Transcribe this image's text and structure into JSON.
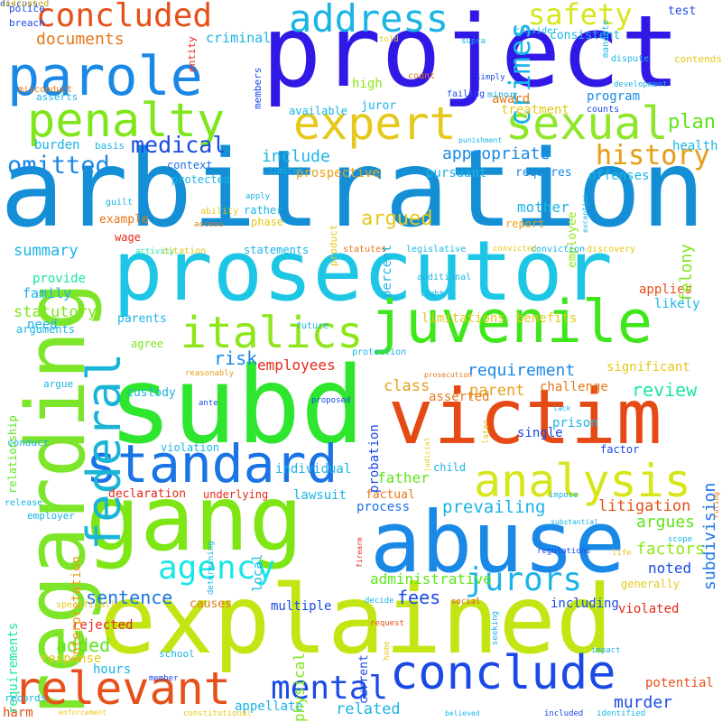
{
  "words": [
    {
      "text": "arbitration",
      "color": "#148fd6"
    },
    {
      "text": "project",
      "color": "#3018e6"
    },
    {
      "text": "prosecutor",
      "color": "#1ec6e6"
    },
    {
      "text": "subd",
      "color": "#2ee62e"
    },
    {
      "text": "explained",
      "color": "#c2e614"
    },
    {
      "text": "victim",
      "color": "#e64a14"
    },
    {
      "text": "gang",
      "color": "#7ee614"
    },
    {
      "text": "abuse",
      "color": "#1a88e6"
    },
    {
      "text": "juvenile",
      "color": "#3ee61a"
    },
    {
      "text": "standard",
      "color": "#1a74e6"
    },
    {
      "text": "regarding",
      "color": "#7ee62a"
    },
    {
      "text": "parole",
      "color": "#1a88e6"
    },
    {
      "text": "penalty",
      "color": "#7ee61a"
    },
    {
      "text": "conclude",
      "color": "#1a4ae6"
    },
    {
      "text": "relevant",
      "color": "#e6501a"
    },
    {
      "text": "analysis",
      "color": "#d6e61a"
    },
    {
      "text": "italics",
      "color": "#8ee61a"
    },
    {
      "text": "expert",
      "color": "#e6c81a"
    },
    {
      "text": "sexual",
      "color": "#8ee62a"
    },
    {
      "text": "address",
      "color": "#1ab4e6"
    },
    {
      "text": "concluded",
      "color": "#e6501a"
    },
    {
      "text": "federal",
      "color": "#1ab4d6"
    },
    {
      "text": "agency",
      "color": "#1ae6e6"
    },
    {
      "text": "mental",
      "color": "#1a4ae6"
    },
    {
      "text": "jurors",
      "color": "#1ab4e6"
    },
    {
      "text": "safety",
      "color": "#d6e61a"
    },
    {
      "text": "history",
      "color": "#e6a01a"
    },
    {
      "text": "omitted",
      "color": "#1a88e6"
    },
    {
      "text": "medical",
      "color": "#1a4ae6"
    },
    {
      "text": "crimes",
      "color": "#1ab4e6"
    },
    {
      "text": "plan",
      "color": "#5ee61a"
    },
    {
      "text": "documents",
      "color": "#e6781a"
    },
    {
      "text": "argued",
      "color": "#e6c81a"
    },
    {
      "text": "appropriate",
      "color": "#1a88e6"
    },
    {
      "text": "include",
      "color": "#1ab4e6"
    },
    {
      "text": "history",
      "color": "#e6a01a"
    },
    {
      "text": "summary",
      "color": "#1ab4e6"
    },
    {
      "text": "risk",
      "color": "#1a88e6"
    },
    {
      "text": "requirement",
      "color": "#1a88e6"
    },
    {
      "text": "review",
      "color": "#1ae6a0"
    },
    {
      "text": "class",
      "color": "#e6a01a"
    },
    {
      "text": "mother",
      "color": "#1ab4e6"
    },
    {
      "text": "statutory",
      "color": "#7ee61a"
    },
    {
      "text": "family",
      "color": "#1ab4e6"
    },
    {
      "text": "applies",
      "color": "#e6501a"
    },
    {
      "text": "likely",
      "color": "#1ab4e6"
    },
    {
      "text": "employees",
      "color": "#e6281a"
    },
    {
      "text": "parent",
      "color": "#e6a01a"
    },
    {
      "text": "father",
      "color": "#5ee61a"
    },
    {
      "text": "sentence",
      "color": "#1a74e6"
    },
    {
      "text": "fees",
      "color": "#1a4ae6"
    },
    {
      "text": "added",
      "color": "#5ee61a"
    },
    {
      "text": "administrative",
      "color": "#5ee61a"
    },
    {
      "text": "prevailing",
      "color": "#1ab4e6"
    },
    {
      "text": "litigation",
      "color": "#e6501a"
    },
    {
      "text": "argues",
      "color": "#5ee61a"
    },
    {
      "text": "factors",
      "color": "#8ee61a"
    },
    {
      "text": "noted",
      "color": "#1a4ae6"
    },
    {
      "text": "murder",
      "color": "#1a4ae6"
    },
    {
      "text": "subdivision",
      "color": "#1a74e6"
    },
    {
      "text": "related",
      "color": "#1ab4e6"
    },
    {
      "text": "individual",
      "color": "#1ab4e6"
    },
    {
      "text": "declaration",
      "color": "#e6281a"
    },
    {
      "text": "multiple",
      "color": "#1a4ae6"
    },
    {
      "text": "current",
      "color": "#1a4ae6"
    },
    {
      "text": "potential",
      "color": "#e6501a"
    },
    {
      "text": "hours",
      "color": "#1ab4e6"
    },
    {
      "text": "appellate",
      "color": "#1ab4e6"
    },
    {
      "text": "rejected",
      "color": "#e6281a"
    },
    {
      "text": "harm",
      "color": "#e6501a"
    },
    {
      "text": "physical",
      "color": "#7ee61a"
    },
    {
      "text": "process",
      "color": "#1a74e6"
    },
    {
      "text": "prison",
      "color": "#1ab4e6"
    },
    {
      "text": "single",
      "color": "#1a4ae6"
    },
    {
      "text": "factor",
      "color": "#1a4ae6"
    },
    {
      "text": "child",
      "color": "#1ab4e6"
    },
    {
      "text": "challenge",
      "color": "#e6781a"
    },
    {
      "text": "significant",
      "color": "#e6c81a"
    },
    {
      "text": "benefits",
      "color": "#e6c81a"
    },
    {
      "text": "limitations",
      "color": "#e6c81a"
    },
    {
      "text": "treatment",
      "color": "#e6c81a"
    },
    {
      "text": "program",
      "color": "#1a88e6"
    },
    {
      "text": "award",
      "color": "#e6781a"
    },
    {
      "text": "juror",
      "color": "#1ab4e6"
    },
    {
      "text": "high",
      "color": "#8ee61a"
    },
    {
      "text": "available",
      "color": "#1ab4e6"
    },
    {
      "text": "criminal",
      "color": "#1ab4e6"
    },
    {
      "text": "consistent",
      "color": "#1ab4e6"
    },
    {
      "text": "burden",
      "color": "#1ab4e6"
    },
    {
      "text": "context",
      "color": "#1a74e6"
    },
    {
      "text": "protected",
      "color": "#1ab4e6"
    },
    {
      "text": "rather",
      "color": "#1ab4e6"
    },
    {
      "text": "phase",
      "color": "#e6c81a"
    },
    {
      "text": "prospective",
      "color": "#e6a01a"
    },
    {
      "text": "pursuant",
      "color": "#1ab4e6"
    },
    {
      "text": "requires",
      "color": "#1a88e6"
    },
    {
      "text": "employee",
      "color": "#8ee61a"
    },
    {
      "text": "offenses",
      "color": "#1ab4e6"
    },
    {
      "text": "health",
      "color": "#1ab4e6"
    },
    {
      "text": "felony",
      "color": "#7ee61a"
    },
    {
      "text": "report",
      "color": "#e6a01a"
    },
    {
      "text": "percent",
      "color": "#1ab4e6"
    },
    {
      "text": "statements",
      "color": "#1ab4e6"
    },
    {
      "text": "wage",
      "color": "#e6281a"
    },
    {
      "text": "example",
      "color": "#e6781a"
    },
    {
      "text": "provide",
      "color": "#1ae6a0"
    },
    {
      "text": "arguments",
      "color": "#1ab4e6"
    },
    {
      "text": "need",
      "color": "#1ab4e6"
    },
    {
      "text": "parents",
      "color": "#1ab4e6"
    },
    {
      "text": "agree",
      "color": "#7ee61a"
    },
    {
      "text": "custody",
      "color": "#1ab4e6"
    },
    {
      "text": "relationship",
      "color": "#5ee61a"
    },
    {
      "text": "argue",
      "color": "#1ab4e6"
    },
    {
      "text": "conduct",
      "color": "#1ab4e6"
    },
    {
      "text": "release",
      "color": "#1ab4e6"
    },
    {
      "text": "employer",
      "color": "#1ab4e6"
    },
    {
      "text": "interpretation",
      "color": "#e6a01a"
    },
    {
      "text": "requirements",
      "color": "#1ae6a0"
    },
    {
      "text": "specifically",
      "color": "#e6c81a"
    },
    {
      "text": "response",
      "color": "#e6c81a"
    },
    {
      "text": "records",
      "color": "#1ab4e6"
    },
    {
      "text": "school",
      "color": "#1ab4e6"
    },
    {
      "text": "causes",
      "color": "#e6781a"
    },
    {
      "text": "local",
      "color": "#1ab4e6"
    },
    {
      "text": "lawsuit",
      "color": "#1ab4e6"
    },
    {
      "text": "underlying",
      "color": "#e6281a"
    },
    {
      "text": "factual",
      "color": "#e6781a"
    },
    {
      "text": "violation",
      "color": "#1ab4e6"
    },
    {
      "text": "probation",
      "color": "#1a4ae6"
    },
    {
      "text": "asserted",
      "color": "#e6781a"
    },
    {
      "text": "including",
      "color": "#1a4ae6"
    },
    {
      "text": "violated",
      "color": "#e6281a"
    },
    {
      "text": "generally",
      "color": "#e6c81a"
    },
    {
      "text": "police",
      "color": "#1a4ae6"
    },
    {
      "text": "breach",
      "color": "#1a4ae6"
    },
    {
      "text": "misconduct",
      "color": "#e6781a"
    },
    {
      "text": "asserts",
      "color": "#1ab4e6"
    },
    {
      "text": "basis",
      "color": "#1ab4e6"
    },
    {
      "text": "entity",
      "color": "#e6281a"
    },
    {
      "text": "members",
      "color": "#1a4ae6"
    },
    {
      "text": "told",
      "color": "#e6c81a"
    },
    {
      "text": "minor",
      "color": "#1ab4e6"
    },
    {
      "text": "count",
      "color": "#e6781a"
    },
    {
      "text": "simply",
      "color": "#1a4ae6"
    },
    {
      "text": "failing",
      "color": "#1a4ae6"
    },
    {
      "text": "supra",
      "color": "#1ab4e6"
    },
    {
      "text": "mandate",
      "color": "#1ab4e6"
    },
    {
      "text": "consider",
      "color": "#1ab4e6"
    },
    {
      "text": "test",
      "color": "#1a4ae6"
    },
    {
      "text": "dispute",
      "color": "#1ab4e6"
    },
    {
      "text": "development",
      "color": "#1ab4e6"
    },
    {
      "text": "contends",
      "color": "#e6c81a"
    },
    {
      "text": "counts",
      "color": "#1a4ae6"
    },
    {
      "text": "punishment",
      "color": "#1ab4e6"
    },
    {
      "text": "limited",
      "color": "#1ab4e6"
    },
    {
      "text": "exception",
      "color": "#1ab4e6"
    },
    {
      "text": "guilt",
      "color": "#1ab4e6"
    },
    {
      "text": "ability",
      "color": "#e6c81a"
    },
    {
      "text": "access",
      "color": "#e6781a"
    },
    {
      "text": "apply",
      "color": "#1ab4e6"
    },
    {
      "text": "product",
      "color": "#e6c81a"
    },
    {
      "text": "activity",
      "color": "#1ae6a0"
    },
    {
      "text": "citation",
      "color": "#e6c81a"
    },
    {
      "text": "statutes",
      "color": "#e6781a"
    },
    {
      "text": "legislative",
      "color": "#1ab4e6"
    },
    {
      "text": "convicted",
      "color": "#e6c81a"
    },
    {
      "text": "conviction",
      "color": "#1ab4e6"
    },
    {
      "text": "discovery",
      "color": "#e6c81a"
    },
    {
      "text": "additional",
      "color": "#1ab4e6"
    },
    {
      "text": "light",
      "color": "#1ab4e6"
    },
    {
      "text": "future",
      "color": "#1ab4e6"
    },
    {
      "text": "reasonably",
      "color": "#e6a01a"
    },
    {
      "text": "protection",
      "color": "#1ab4e6"
    },
    {
      "text": "prosecution",
      "color": "#e6781a"
    },
    {
      "text": "ante",
      "color": "#1a4ae6"
    },
    {
      "text": "proposed",
      "color": "#1a4ae6"
    },
    {
      "text": "lack",
      "color": "#1ab4e6"
    },
    {
      "text": "judicial",
      "color": "#e6c81a"
    },
    {
      "text": "later",
      "color": "#e6c81a"
    },
    {
      "text": "impose",
      "color": "#1ab4e6"
    },
    {
      "text": "substantial",
      "color": "#1ab4e6"
    },
    {
      "text": "ruling",
      "color": "#e6781a"
    },
    {
      "text": "firearm",
      "color": "#e6281a"
    },
    {
      "text": "determining",
      "color": "#1ab4e6"
    },
    {
      "text": "regulations",
      "color": "#1a4ae6"
    },
    {
      "text": "scope",
      "color": "#1ab4e6"
    },
    {
      "text": "life",
      "color": "#e6c81a"
    },
    {
      "text": "decide",
      "color": "#1ab4e6"
    },
    {
      "text": "social",
      "color": "#e6501a"
    },
    {
      "text": "request",
      "color": "#e6501a"
    },
    {
      "text": "seeking",
      "color": "#1ab4e6"
    },
    {
      "text": "home",
      "color": "#e6c81a"
    },
    {
      "text": "impact",
      "color": "#1ab4e6"
    },
    {
      "text": "member",
      "color": "#1a4ae6"
    },
    {
      "text": "enforcement",
      "color": "#e6c81a"
    },
    {
      "text": "constitutional",
      "color": "#e6c81a"
    },
    {
      "text": "believed",
      "color": "#1ab4e6"
    },
    {
      "text": "included",
      "color": "#1a4ae6"
    },
    {
      "text": "identified",
      "color": "#1ab4e6"
    },
    {
      "text": "discussed",
      "color": "#1a4ae6"
    },
    {
      "text": "indicated",
      "color": "#e6c81a"
    }
  ]
}
